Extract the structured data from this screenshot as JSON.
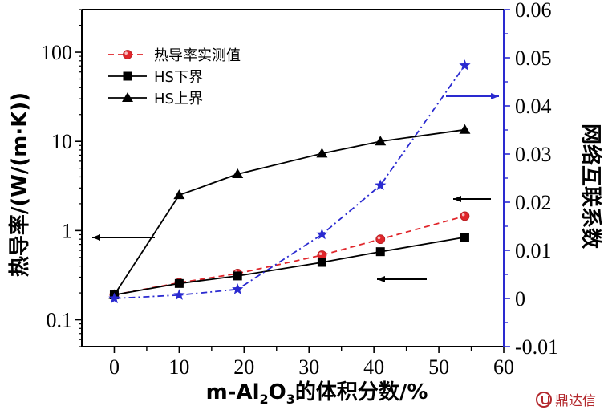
{
  "chart_data": {
    "type": "line",
    "xlabel": "m-Al2O3的体积分数/%",
    "xlabel_main": "m-Al",
    "xlabel_sub1": "2",
    "xlabel_o": "O",
    "xlabel_sub2": "3",
    "xlabel_rest": "的体积分数/%",
    "ylabel_left": "热导率/(W/(m·K))",
    "ylabel_right": "网络互联系数",
    "xlim": [
      -5,
      60
    ],
    "ylim_left": [
      0.05,
      300
    ],
    "ylim_left_scale": "log",
    "ylim_right": [
      -0.01,
      0.06
    ],
    "x_ticks": [
      "0",
      "10",
      "20",
      "30",
      "40",
      "50",
      "60"
    ],
    "y_left_ticks": [
      "0.1",
      "1",
      "10",
      "100"
    ],
    "y_right_ticks": [
      "-0.01",
      "0",
      "0.01",
      "0.02",
      "0.03",
      "0.04",
      "0.05",
      "0.06"
    ],
    "series": [
      {
        "name": "热导率实测值",
        "axis": "left",
        "color": "#e0262b",
        "marker": "circle",
        "x": [
          0,
          10,
          19,
          32,
          41,
          54
        ],
        "values": [
          0.19,
          0.26,
          0.33,
          0.53,
          0.8,
          1.45
        ]
      },
      {
        "name": "HS下界",
        "axis": "left",
        "color": "#000000",
        "marker": "square",
        "x": [
          0,
          10,
          19,
          32,
          41,
          54
        ],
        "values": [
          0.19,
          0.255,
          0.31,
          0.44,
          0.58,
          0.84
        ]
      },
      {
        "name": "HS上界",
        "axis": "left",
        "color": "#000000",
        "marker": "triangle",
        "x": [
          0,
          10,
          19,
          32,
          41,
          54
        ],
        "values": [
          0.19,
          2.5,
          4.3,
          7.3,
          10,
          13.5
        ]
      },
      {
        "axis": "right",
        "color": "#2a2ad0",
        "marker": "star",
        "x": [
          0,
          10,
          19,
          32,
          41,
          54
        ],
        "values": [
          0.0,
          0.0007,
          0.0019,
          0.0133,
          0.0235,
          0.0484
        ]
      }
    ],
    "annotations": [
      {
        "kind": "arrow",
        "direction": "left",
        "points_to": "left axis"
      },
      {
        "kind": "arrow",
        "direction": "left",
        "points_to": "left axis"
      },
      {
        "kind": "arrow",
        "direction": "left",
        "points_to": "left axis"
      },
      {
        "kind": "arrow",
        "direction": "right",
        "points_to": "right axis"
      }
    ],
    "legend_position": "top-left",
    "grid": false
  },
  "watermark": {
    "text": "鼎达信",
    "color": "#b3282d"
  }
}
